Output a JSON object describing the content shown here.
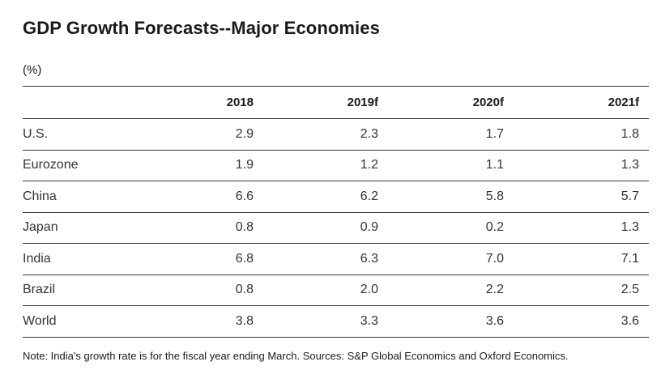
{
  "title": "GDP Growth Forecasts--Major Economies",
  "unit": "(%)",
  "note": "Note: India's growth rate is for the fiscal year ending March. Sources: S&P Global Economics and Oxford Economics.",
  "chart_data": {
    "type": "table",
    "title": "GDP Growth Forecasts--Major Economies",
    "unit": "(%)",
    "columns": [
      "2018",
      "2019f",
      "2020f",
      "2021f"
    ],
    "rows": [
      {
        "label": "U.S.",
        "values": [
          "2.9",
          "2.3",
          "1.7",
          "1.8"
        ]
      },
      {
        "label": "Eurozone",
        "values": [
          "1.9",
          "1.2",
          "1.1",
          "1.3"
        ]
      },
      {
        "label": "China",
        "values": [
          "6.6",
          "6.2",
          "5.8",
          "5.7"
        ]
      },
      {
        "label": "Japan",
        "values": [
          "0.8",
          "0.9",
          "0.2",
          "1.3"
        ]
      },
      {
        "label": "India",
        "values": [
          "6.8",
          "6.3",
          "7.0",
          "7.1"
        ]
      },
      {
        "label": "Brazil",
        "values": [
          "0.8",
          "2.0",
          "2.2",
          "2.5"
        ]
      },
      {
        "label": "World",
        "values": [
          "3.8",
          "3.3",
          "3.6",
          "3.6"
        ]
      }
    ],
    "note": "Note: India's growth rate is for the fiscal year ending March. Sources: S&P Global Economics and Oxford Economics."
  }
}
